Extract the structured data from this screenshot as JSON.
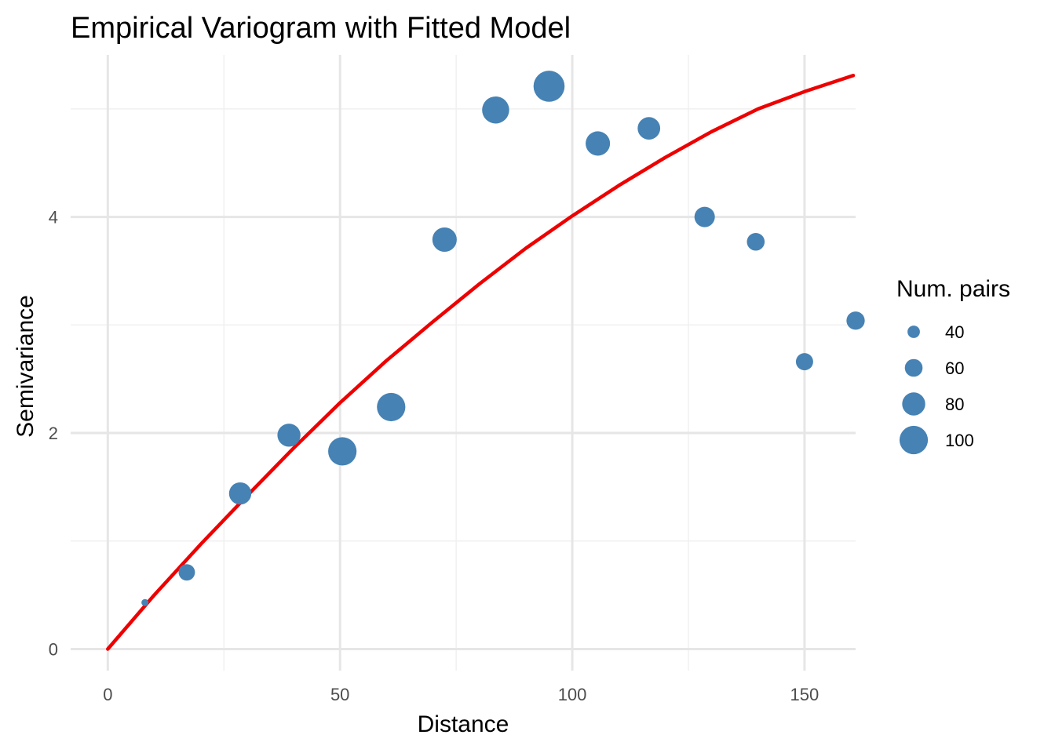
{
  "chart_data": {
    "type": "scatter",
    "title": "Empirical Variogram with Fitted Model",
    "xlabel": "Distance",
    "ylabel": "Semivariance",
    "xlim": [
      -8,
      161
    ],
    "ylim": [
      -0.2,
      5.5
    ],
    "x_ticks": [
      0,
      50,
      100,
      150
    ],
    "x_tick_labels": [
      "0",
      "50",
      "100",
      "150"
    ],
    "x_minor_ticks": [
      25,
      75,
      125
    ],
    "y_ticks": [
      0,
      2,
      4
    ],
    "y_tick_labels": [
      "0",
      "2",
      "4"
    ],
    "y_minor_ticks": [
      1,
      3,
      5
    ],
    "grid": true,
    "point_color": "#4682b4",
    "points": [
      {
        "x": 8,
        "y": 0.43,
        "np": 20
      },
      {
        "x": 17,
        "y": 0.71,
        "np": 55
      },
      {
        "x": 28.5,
        "y": 1.44,
        "np": 77
      },
      {
        "x": 39,
        "y": 1.98,
        "np": 80
      },
      {
        "x": 50.5,
        "y": 1.83,
        "np": 100
      },
      {
        "x": 61,
        "y": 2.24,
        "np": 100
      },
      {
        "x": 72.5,
        "y": 3.79,
        "np": 85
      },
      {
        "x": 83.5,
        "y": 4.99,
        "np": 95
      },
      {
        "x": 95,
        "y": 5.21,
        "np": 110
      },
      {
        "x": 105.5,
        "y": 4.68,
        "np": 85
      },
      {
        "x": 116.5,
        "y": 4.82,
        "np": 78
      },
      {
        "x": 128.5,
        "y": 4.0,
        "np": 70
      },
      {
        "x": 139.5,
        "y": 3.77,
        "np": 60
      },
      {
        "x": 150,
        "y": 2.66,
        "np": 58
      },
      {
        "x": 161,
        "y": 3.04,
        "np": 62
      }
    ],
    "fitted_model": {
      "color": "#ee0000",
      "x": [
        0,
        10,
        20,
        30,
        40,
        50,
        60,
        70,
        80,
        90,
        100,
        110,
        120,
        130,
        140,
        150,
        160.5
      ],
      "y": [
        0,
        0.5,
        0.97,
        1.42,
        1.86,
        2.28,
        2.67,
        3.03,
        3.38,
        3.71,
        4.01,
        4.29,
        4.55,
        4.79,
        5.0,
        5.16,
        5.31
      ]
    },
    "legend": {
      "title": "Num. pairs",
      "position": "right",
      "entries": [
        {
          "label": "40",
          "np": 40
        },
        {
          "label": "60",
          "np": 60
        },
        {
          "label": "80",
          "np": 80
        },
        {
          "label": "100",
          "np": 100
        }
      ]
    }
  }
}
